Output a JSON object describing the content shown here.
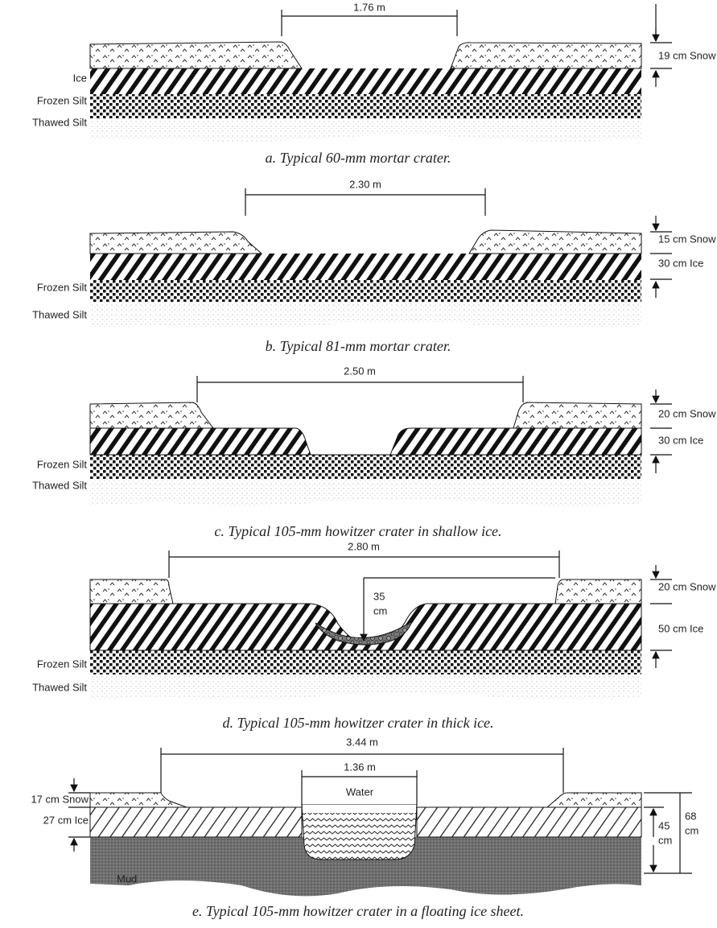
{
  "panels": [
    {
      "caption": "a. Typical 60-mm mortar crater.",
      "crater_width": "1.76 m",
      "left_labels": [
        "Ice",
        "Frozen Silt",
        "Thawed Silt"
      ],
      "right_labels": [
        "19 cm Snow"
      ]
    },
    {
      "caption": "b. Typical 81-mm mortar crater.",
      "crater_width": "2.30 m",
      "left_labels": [
        "Frozen Silt",
        "Thawed Silt"
      ],
      "right_labels": [
        "15 cm Snow",
        "30 cm Ice"
      ]
    },
    {
      "caption": "c. Typical 105-mm howitzer crater in shallow ice.",
      "crater_width": "2.50 m",
      "left_labels": [
        "Frozen Silt",
        "Thawed Silt"
      ],
      "right_labels": [
        "20 cm Snow",
        "30 cm Ice"
      ]
    },
    {
      "caption": "d. Typical 105-mm howitzer crater in thick ice.",
      "crater_width": "2.80 m",
      "crater_depth": [
        "35",
        "cm"
      ],
      "left_labels": [
        "Frozen Silt",
        "Thawed Silt"
      ],
      "right_labels": [
        "20 cm Snow",
        "50 cm Ice"
      ]
    },
    {
      "caption": "e. Typical 105-mm howitzer crater in a floating ice sheet.",
      "crater_width": "3.44 m",
      "hole_width": "1.36 m",
      "hole_label": "Water",
      "left_labels": [
        "17 cm Snow",
        "27 cm Ice",
        "Mud"
      ],
      "right_labels": [
        [
          "45",
          "cm"
        ],
        [
          "68",
          "cm"
        ]
      ]
    }
  ]
}
